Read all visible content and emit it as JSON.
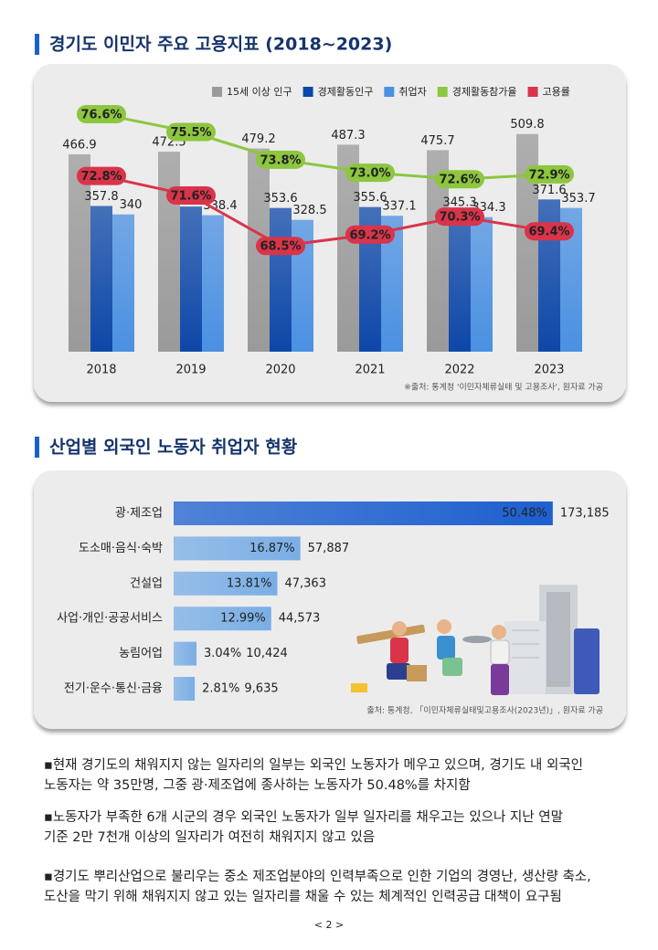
{
  "headings": [
    "경기도 이민자 주요 고용지표 (2018~2023)",
    "산업별 외국인 노동자 취업자 현황"
  ],
  "chart_data": [
    {
      "type": "bar",
      "categories": [
        "2018",
        "2019",
        "2020",
        "2021",
        "2022",
        "2023"
      ],
      "series": [
        {
          "name": "15세 이상 인구",
          "type": "bar",
          "color": "#9a9a9a",
          "values": [
            466.9,
            472.5,
            479.2,
            487.3,
            475.7,
            509.8
          ]
        },
        {
          "name": "경제활동인구",
          "type": "bar",
          "color": "#0d47a8",
          "values": [
            357.8,
            356.6,
            353.6,
            355.6,
            345.3,
            371.6
          ]
        },
        {
          "name": "취업자",
          "type": "bar",
          "color": "#4a90e2",
          "values": [
            340,
            338.4,
            328.5,
            337.1,
            334.3,
            353.7
          ]
        },
        {
          "name": "경제활동참가율",
          "type": "line",
          "axis": "y2",
          "color": "#8dc63f",
          "values": [
            76.6,
            75.5,
            73.8,
            73.0,
            72.6,
            72.9
          ],
          "value_labels": [
            "76.6%",
            "75.5%",
            "73.8%",
            "73.0%",
            "72.6%",
            "72.9%"
          ]
        },
        {
          "name": "고용률",
          "type": "line",
          "axis": "y2",
          "color": "#d9344a",
          "values": [
            72.8,
            71.6,
            68.5,
            69.2,
            70.3,
            69.4
          ],
          "value_labels": [
            "72.8%",
            "71.6%",
            "68.5%",
            "69.2%",
            "70.3%",
            "69.4%"
          ]
        }
      ],
      "ylim": [
        50,
        600
      ],
      "y2lim": [
        62,
        78
      ],
      "grid": false,
      "legend": "top-right",
      "source": "※출처: 통계청 '이민자체류실태 및 고용조사', 원자료 가공"
    },
    {
      "type": "hbar",
      "categories": [
        "광·제조업",
        "도소매·음식·숙박",
        "건설업",
        "사업·개인·공공서비스",
        "농림어업",
        "전기·운수·통신·금융"
      ],
      "values": [
        50.48,
        16.87,
        13.81,
        12.99,
        3.04,
        2.81
      ],
      "value_labels": [
        "50.48%",
        "16.87%",
        "13.81%",
        "12.99%",
        "3.04%",
        "2.81%"
      ],
      "counts": [
        "173,185",
        "57,887",
        "47,363",
        "44,573",
        "10,424",
        "9,635"
      ],
      "colors": [
        "#1d5fcf",
        "#7aaee6",
        "#7aaee6",
        "#7aaee6",
        "#7aaee6",
        "#7aaee6"
      ],
      "xlim": [
        0,
        55
      ],
      "source": "출처: 통계청, 「이민자체류실태및고용조사(2023년)」, 원자료 가공"
    }
  ],
  "paragraphs": [
    [
      "▪현재 경기도의 채워지지 않는 일자리의 일부는 외국인 노동자가 메우고 있으며, 경기도 내 외국인",
      "노동자는 약 35만명, 그중 광·제조업에 종사하는 노동자가 50.48%를 차지함"
    ],
    [
      "▪노동자가 부족한 6개 시군의 경우 외국인 노동자가 일부 일자리를 채우고는 있으나 지난 연말",
      "기준 2만 7천개 이상의 일자리가 여전히 채워지지 않고 있음"
    ],
    [
      "▪경기도 뿌리산업으로 불리우는 중소 제조업분야의 인력부족으로 인한 기업의 경영난, 생산량 축소,",
      "도산을 막기 위해 채워지지 않고 있는 일자리를 채울 수 있는 체계적인 인력공급 대책이 요구됨"
    ]
  ],
  "page_number": "< 2 >"
}
